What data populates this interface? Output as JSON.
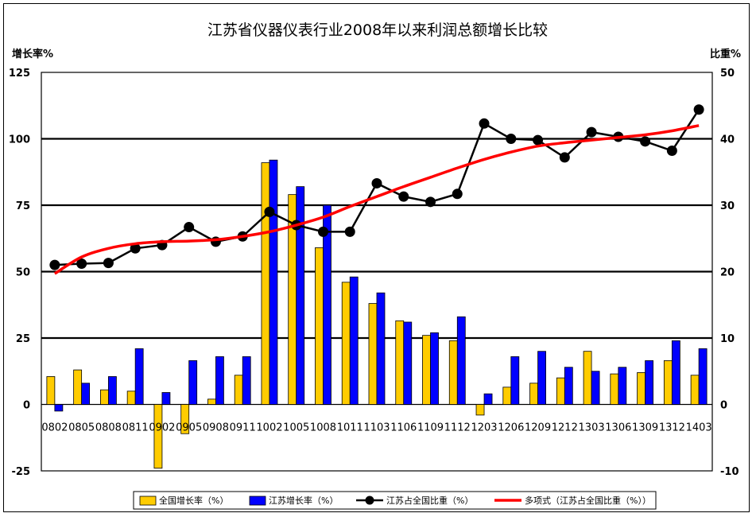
{
  "chart_data": {
    "type": "bar",
    "title": "江苏省仪器仪表行业2008年以来利润总额增长比较",
    "ylabel_left": "增长率%",
    "ylabel_right": "比重%",
    "ylim_left": [
      -25,
      125
    ],
    "ylim_right": [
      -10,
      50
    ],
    "yticks_left": [
      125,
      100,
      75,
      50,
      25,
      0,
      -25
    ],
    "yticks_right": [
      50,
      40,
      30,
      20,
      10,
      0,
      -10
    ],
    "grid": true,
    "legend_position": "bottom",
    "categories": [
      "0802",
      "0805",
      "0808",
      "0811",
      "0902",
      "0905",
      "0908",
      "0911",
      "1002",
      "1005",
      "1008",
      "1011",
      "1103",
      "1106",
      "1109",
      "1112",
      "1203",
      "1206",
      "1209",
      "1212",
      "1303",
      "1306",
      "1309",
      "1312",
      "1403"
    ],
    "series": [
      {
        "name": "全国增长率（%）",
        "kind": "bar",
        "axis": "left",
        "color": "#FFCC00",
        "values": [
          10.5,
          13,
          5.5,
          5,
          -24,
          -11,
          2,
          11,
          91,
          79,
          59,
          46,
          38,
          31.5,
          26,
          24,
          -4,
          6.5,
          8,
          10,
          20,
          11.5,
          12,
          16.5,
          11
        ]
      },
      {
        "name": "江苏增长率（%）",
        "kind": "bar",
        "axis": "left",
        "color": "#0000FF",
        "values": [
          -2.5,
          8,
          10.5,
          21,
          4.5,
          16.5,
          18,
          18,
          92,
          82,
          75,
          48,
          42,
          31,
          27,
          33,
          4,
          18,
          20,
          14,
          12.5,
          14,
          16.5,
          24,
          21
        ]
      },
      {
        "name": "江苏占全国比重（%）",
        "kind": "line-marker",
        "axis": "right",
        "color": "#000000",
        "values": [
          21,
          21.2,
          21.3,
          23.5,
          24,
          26.7,
          24.5,
          25.3,
          29,
          27,
          26,
          26,
          33.3,
          31.3,
          30.5,
          31.7,
          42.3,
          40,
          39.8,
          37.2,
          41,
          40.3,
          39.6,
          38.2,
          44.4
        ]
      },
      {
        "name": "多项式（江苏占全国比重（%））",
        "kind": "trend",
        "axis": "right",
        "color": "#FF0000",
        "values": [
          19.7,
          22.2,
          23.5,
          24.2,
          24.5,
          24.6,
          24.8,
          25.3,
          26.0,
          27.0,
          28.2,
          29.8,
          31.3,
          32.8,
          34.2,
          35.6,
          36.9,
          38.0,
          38.9,
          39.4,
          39.8,
          40.2,
          40.6,
          41.2,
          42.0
        ]
      }
    ]
  }
}
